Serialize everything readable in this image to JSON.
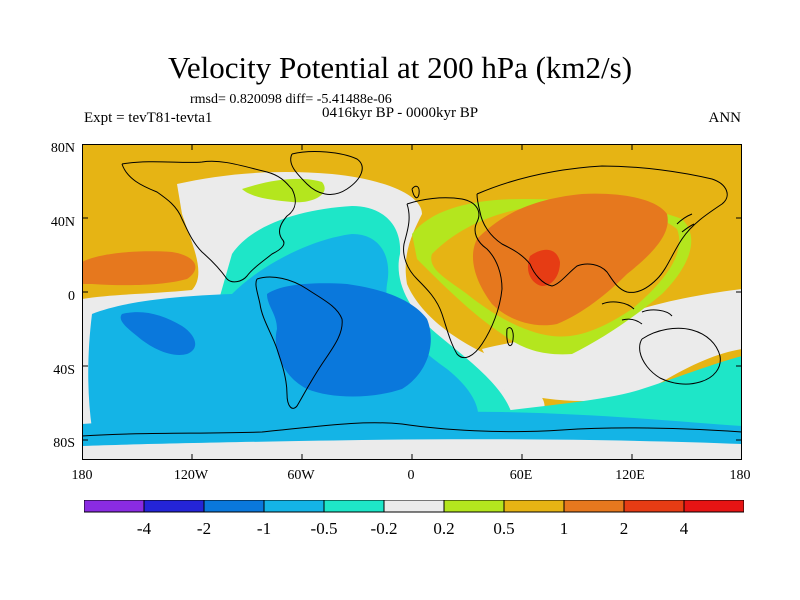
{
  "figure": {
    "title": "Velocity Potential at 200 hPa (km2/s)",
    "stats": "rmsd= 0.820098 diff= -5.41488e-06",
    "experiment": "Expt = tevT81-tevta1",
    "period": "0416kyr BP - 0000kyr BP",
    "season": "ANN"
  },
  "axes": {
    "y_ticks": [
      "80N",
      "40N",
      "0",
      "40S",
      "80S"
    ],
    "x_ticks": [
      "180",
      "120W",
      "60W",
      "0",
      "60E",
      "120E",
      "180"
    ]
  },
  "colorbar": {
    "labels": [
      "-4",
      "-2",
      "-1",
      "-0.5",
      "-0.2",
      "0.2",
      "0.5",
      "1",
      "2",
      "4"
    ],
    "colors": [
      "#8a2be2",
      "#2424d8",
      "#0a78dc",
      "#14b4e6",
      "#1ee6c8",
      "#ebebeb",
      "#b4e61e",
      "#e6b414",
      "#e6781e",
      "#e63c14",
      "#e61414"
    ]
  },
  "colors": {
    "pos_1_2": "#e6b414",
    "pos_2_4": "#e6781e",
    "pos_4_plus": "#e63c14",
    "pos_05_1": "#b4e61e",
    "neutral": "#ebebeb",
    "neg_05_02": "#1ee6c8",
    "neg_1_05": "#14b4e6",
    "neg_2_1": "#0a78dc",
    "coast": "#000000"
  }
}
